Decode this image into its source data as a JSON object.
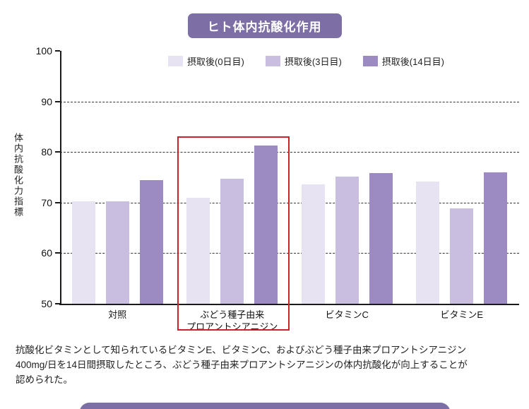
{
  "title": "ヒト体内抗酸化作用",
  "caption": "抗酸化ビタミンとして知られているビタミンE、ビタミンC、およびぶどう種子由来プロアントシアニジン\n400mg/日を14日間摂取したところ、ぶどう種子由来プロアントシアニジンの体内抗酸化が向上することが\n認められた。",
  "colors": {
    "banner_purple": "#7d6fa6",
    "series_day0": "#e7e3f2",
    "series_day3": "#c9bee0",
    "series_day14": "#9b8bc2",
    "highlight_red": "#c9242e",
    "axis_black": "#1a1a1a"
  },
  "chart_data": {
    "type": "bar",
    "title": "ヒト体内抗酸化作用",
    "ylabel": "体内抗酸化力指標",
    "xlabel": "",
    "categories": [
      "対照",
      "ぶどう種子由来\nプロアントシアニジン",
      "ビタミンC",
      "ビタミンE"
    ],
    "series": [
      {
        "name": "摂取後(0日目)",
        "color": "#e7e3f2",
        "values": [
          70.2,
          71.0,
          73.6,
          74.2
        ]
      },
      {
        "name": "摂取後(3日目)",
        "color": "#c9bee0",
        "values": [
          70.2,
          74.7,
          75.2,
          68.8
        ]
      },
      {
        "name": "摂取後(14日目)",
        "color": "#9b8bc2",
        "values": [
          74.5,
          81.3,
          75.8,
          76.0
        ]
      }
    ],
    "ylim": [
      50,
      100
    ],
    "yticks": [
      50,
      60,
      70,
      80,
      90,
      100
    ],
    "gridlines": [
      60,
      70,
      80,
      90
    ],
    "grid": "dashed",
    "legend_position": "top",
    "highlight_category_index": 1
  }
}
